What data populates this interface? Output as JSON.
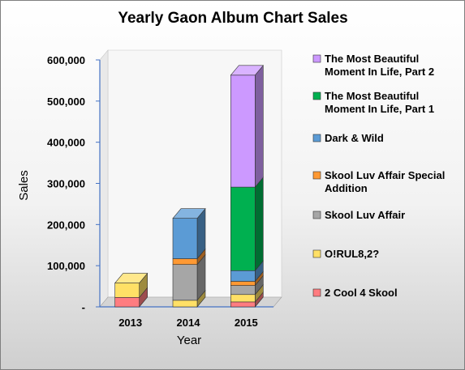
{
  "chart_data": {
    "type": "bar",
    "stacked": true,
    "three_d": true,
    "title": "Yearly Gaon Album Chart Sales",
    "xlabel": "Year",
    "ylabel": "Sales",
    "categories": [
      "2013",
      "2014",
      "2015"
    ],
    "ylim": [
      0,
      600000
    ],
    "y_ticks": [
      {
        "value": 0,
        "label": "-"
      },
      {
        "value": 100000,
        "label": "100,000"
      },
      {
        "value": 200000,
        "label": "200,000"
      },
      {
        "value": 300000,
        "label": "300,000"
      },
      {
        "value": 400000,
        "label": "400,000"
      },
      {
        "value": 500000,
        "label": "500,000"
      },
      {
        "value": 600000,
        "label": "600,000"
      }
    ],
    "grid": false,
    "legend_position": "right",
    "series": [
      {
        "name": "2 Cool 4 Skool",
        "color": "#ff7c80",
        "values": [
          23000,
          0,
          12000
        ]
      },
      {
        "name": "O!RUL8,2?",
        "color": "#ffe066",
        "values": [
          35000,
          16000,
          18000
        ]
      },
      {
        "name": "Skool Luv Affair",
        "color": "#a6a6a6",
        "values": [
          0,
          87000,
          22000
        ]
      },
      {
        "name": "Skool Luv Affair Special Addition",
        "color": "#ff9933",
        "values": [
          0,
          14000,
          10000
        ]
      },
      {
        "name": "Dark & Wild",
        "color": "#5b9bd5",
        "values": [
          0,
          98000,
          26000
        ]
      },
      {
        "name": "The Most Beautiful Moment In Life, Part 1",
        "color": "#00b050",
        "values": [
          0,
          0,
          203000
        ]
      },
      {
        "name": "The Most Beautiful Moment In Life, Part 2",
        "color": "#cc99ff",
        "values": [
          0,
          0,
          272000
        ]
      }
    ],
    "legend_lines": [
      [
        "The Most Beautiful",
        "Moment In Life, Part 2"
      ],
      [
        "The Most Beautiful",
        "Moment In Life, Part 1"
      ],
      [
        "Dark & Wild"
      ],
      [
        "Skool Luv Affair Special",
        "Addition"
      ],
      [
        "Skool Luv Affair"
      ],
      [
        "O!RUL8,2?"
      ],
      [
        "2 Cool 4 Skool"
      ]
    ]
  }
}
